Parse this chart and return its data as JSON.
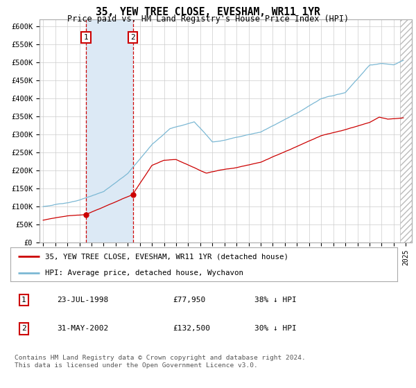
{
  "title": "35, YEW TREE CLOSE, EVESHAM, WR11 1YR",
  "subtitle": "Price paid vs. HM Land Registry's House Price Index (HPI)",
  "ylabel_ticks": [
    "£0",
    "£50K",
    "£100K",
    "£150K",
    "£200K",
    "£250K",
    "£300K",
    "£350K",
    "£400K",
    "£450K",
    "£500K",
    "£550K",
    "£600K"
  ],
  "ylim": [
    0,
    620000
  ],
  "xlim_start": 1994.7,
  "xlim_end": 2025.5,
  "hpi_color": "#7bb8d4",
  "price_color": "#cc0000",
  "sale1_date_x": 1998.55,
  "sale1_price": 77950,
  "sale2_date_x": 2002.42,
  "sale2_price": 132500,
  "legend_line1": "35, YEW TREE CLOSE, EVESHAM, WR11 1YR (detached house)",
  "legend_line2": "HPI: Average price, detached house, Wychavon",
  "table_row1_num": "1",
  "table_row1_date": "23-JUL-1998",
  "table_row1_price": "£77,950",
  "table_row1_hpi": "38% ↓ HPI",
  "table_row2_num": "2",
  "table_row2_date": "31-MAY-2002",
  "table_row2_price": "£132,500",
  "table_row2_hpi": "30% ↓ HPI",
  "footer": "Contains HM Land Registry data © Crown copyright and database right 2024.\nThis data is licensed under the Open Government Licence v3.0.",
  "background_color": "#ffffff",
  "grid_color": "#cccccc",
  "shade_color": "#dce9f5"
}
